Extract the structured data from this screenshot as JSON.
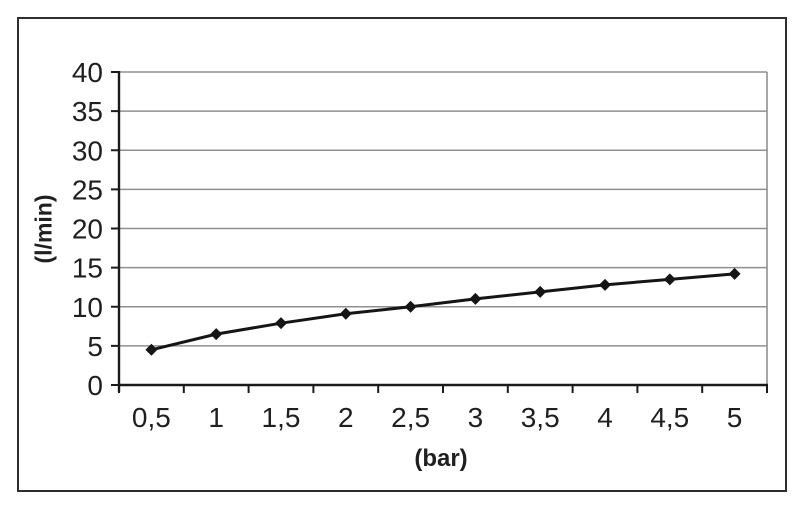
{
  "chart_data": {
    "type": "line",
    "title": "",
    "xlabel": "(bar)",
    "ylabel": "(l/min)",
    "categories": [
      "0,5",
      "1",
      "1,5",
      "2",
      "2,5",
      "3",
      "3,5",
      "4",
      "4,5",
      "5"
    ],
    "x_values": [
      0.5,
      1,
      1.5,
      2,
      2.5,
      3,
      3.5,
      4,
      4.5,
      5
    ],
    "values": [
      4.5,
      6.5,
      7.9,
      9.1,
      10,
      11,
      11.9,
      12.8,
      13.5,
      14.2
    ],
    "y_ticks": [
      0,
      5,
      10,
      15,
      20,
      25,
      30,
      35,
      40
    ],
    "ylim": [
      0,
      40
    ],
    "grid": "horizontal-only",
    "legend": "none",
    "marker": "diamond",
    "colors": {
      "series_line": "#151515",
      "marker_fill": "#151515",
      "gridline": "#8f8f8f",
      "axis_line": "#1a1a1a",
      "tick_label": "#1f1f1f"
    }
  }
}
